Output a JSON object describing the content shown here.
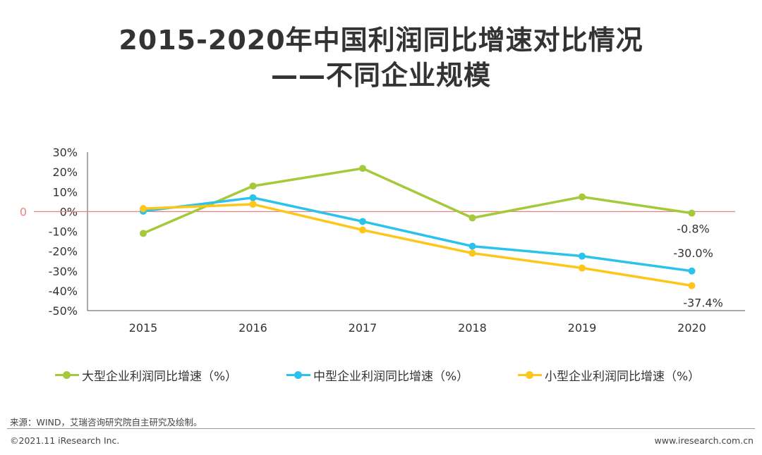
{
  "title_line1": "2015-2020年中国利润同比增速对比情况",
  "title_line2": "——不同企业规模",
  "chart_data": {
    "type": "line",
    "categories": [
      "2015",
      "2016",
      "2017",
      "2018",
      "2019",
      "2020"
    ],
    "ylim": [
      -50,
      30
    ],
    "yticks": [
      "30%",
      "20%",
      "10%",
      "0%",
      "-10%",
      "-20%",
      "-30%",
      "-40%",
      "-50%"
    ],
    "reference_line": {
      "value": 0,
      "label": "0",
      "color": "#f08080"
    },
    "grid": false,
    "legend_position": "bottom",
    "series": [
      {
        "name": "大型企业利润同比增速（%）",
        "color": "#a5c93a",
        "values": [
          -11.0,
          12.9,
          21.8,
          -3.2,
          7.4,
          -0.8
        ]
      },
      {
        "name": "中型企业利润同比增速（%）",
        "color": "#2bc3ec",
        "values": [
          0.2,
          7.0,
          -5.0,
          -17.5,
          -22.5,
          -30.0
        ]
      },
      {
        "name": "小型企业利润同比增速（%）",
        "color": "#ffc61a",
        "values": [
          1.5,
          3.7,
          -9.3,
          -21.0,
          -28.5,
          -37.4
        ]
      }
    ],
    "data_labels": [
      {
        "series": 0,
        "index": 5,
        "text": "-0.8%"
      },
      {
        "series": 1,
        "index": 5,
        "text": "-30.0%"
      },
      {
        "series": 2,
        "index": 5,
        "text": "-37.4%"
      }
    ]
  },
  "footer": {
    "source": "来源：WIND，艾瑞咨询研究院自主研究及绘制。",
    "copyright": "©2021.11 iResearch Inc.",
    "url": "www.iresearch.com.cn"
  }
}
